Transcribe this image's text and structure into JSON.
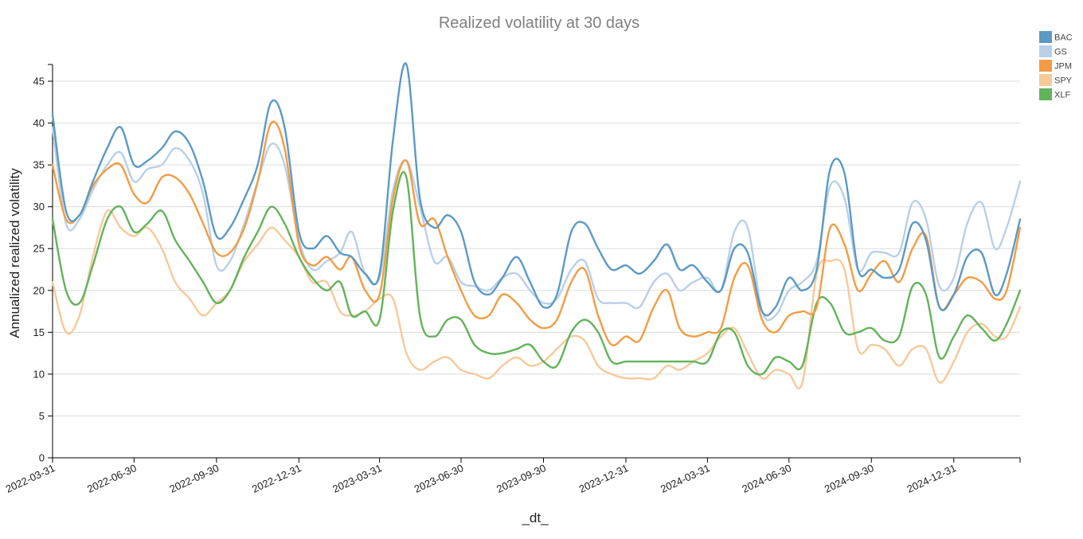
{
  "chart_data": {
    "type": "line",
    "title": "Realized volatility at 30 days",
    "xlabel": "_dt_",
    "ylabel": "Annualized realized volatility",
    "ylim": [
      0,
      47
    ],
    "yticks": [
      0,
      5,
      10,
      15,
      20,
      25,
      30,
      35,
      40,
      45
    ],
    "xlim": [
      "2022-03-31",
      "2025-03-15"
    ],
    "xticks": [
      "2022-03-31",
      "2022-06-30",
      "2022-09-30",
      "2022-12-31",
      "2023-03-31",
      "2023-06-30",
      "2023-09-30",
      "2023-12-31",
      "2024-03-31",
      "2024-06-30",
      "2024-09-30",
      "2024-12-31"
    ],
    "grid": "horizontal",
    "legend_position": "top-right",
    "x": [
      "2022-03-31",
      "2022-04-15",
      "2022-04-30",
      "2022-05-15",
      "2022-05-31",
      "2022-06-15",
      "2022-06-30",
      "2022-07-15",
      "2022-07-31",
      "2022-08-15",
      "2022-08-31",
      "2022-09-15",
      "2022-09-30",
      "2022-10-15",
      "2022-10-31",
      "2022-11-15",
      "2022-11-30",
      "2022-12-15",
      "2022-12-31",
      "2023-01-15",
      "2023-01-31",
      "2023-02-15",
      "2023-02-28",
      "2023-03-15",
      "2023-03-31",
      "2023-04-15",
      "2023-04-30",
      "2023-05-15",
      "2023-05-31",
      "2023-06-15",
      "2023-06-30",
      "2023-07-15",
      "2023-07-31",
      "2023-08-15",
      "2023-08-31",
      "2023-09-15",
      "2023-09-30",
      "2023-10-15",
      "2023-10-31",
      "2023-11-15",
      "2023-11-30",
      "2023-12-15",
      "2023-12-31",
      "2024-01-15",
      "2024-01-31",
      "2024-02-15",
      "2024-02-29",
      "2024-03-15",
      "2024-03-31",
      "2024-04-15",
      "2024-04-30",
      "2024-05-15",
      "2024-05-31",
      "2024-06-15",
      "2024-06-30",
      "2024-07-15",
      "2024-07-31",
      "2024-08-15",
      "2024-08-31",
      "2024-09-15",
      "2024-09-30",
      "2024-10-15",
      "2024-10-31",
      "2024-11-15",
      "2024-11-30",
      "2024-12-15",
      "2024-12-31",
      "2025-01-15",
      "2025-01-31",
      "2025-02-15",
      "2025-02-28",
      "2025-03-15"
    ],
    "series": [
      {
        "name": "BAC",
        "color": "#5b9ac4",
        "values": [
          41.0,
          29.5,
          29.0,
          33.0,
          37.0,
          39.5,
          35.0,
          35.5,
          37.0,
          39.0,
          37.5,
          33.0,
          26.5,
          27.5,
          31.0,
          35.0,
          42.5,
          39.5,
          27.0,
          25.0,
          26.5,
          24.5,
          24.0,
          22.0,
          22.0,
          38.0,
          47.0,
          31.0,
          27.5,
          29.0,
          27.0,
          21.0,
          19.5,
          21.5,
          24.0,
          21.0,
          18.0,
          19.5,
          27.0,
          28.0,
          25.0,
          22.5,
          23.0,
          22.0,
          23.5,
          25.5,
          22.5,
          23.0,
          21.0,
          20.0,
          25.0,
          24.5,
          17.5,
          18.0,
          21.5,
          20.0,
          22.5,
          34.5,
          34.0,
          22.5,
          22.5,
          21.5,
          22.5,
          28.0,
          26.0,
          18.0,
          19.5,
          24.0,
          24.5,
          19.5,
          22.0,
          28.5
        ]
      },
      {
        "name": "GS",
        "color": "#b9d0e8",
        "values": [
          39.5,
          28.0,
          28.5,
          32.0,
          35.0,
          36.5,
          33.0,
          34.5,
          35.0,
          37.0,
          35.5,
          31.5,
          23.0,
          23.5,
          28.0,
          33.0,
          37.5,
          35.0,
          26.0,
          22.5,
          23.5,
          24.5,
          27.0,
          22.0,
          21.5,
          32.0,
          35.5,
          30.0,
          23.5,
          24.0,
          21.0,
          20.5,
          20.0,
          21.5,
          22.0,
          20.0,
          18.5,
          19.0,
          22.5,
          23.5,
          19.0,
          18.5,
          18.5,
          18.0,
          21.0,
          22.0,
          20.0,
          21.0,
          21.5,
          20.0,
          27.0,
          27.5,
          17.5,
          17.0,
          20.0,
          21.0,
          23.5,
          32.5,
          31.0,
          22.5,
          24.5,
          24.5,
          24.5,
          30.5,
          28.5,
          20.5,
          21.5,
          28.0,
          30.5,
          25.0,
          27.5,
          33.0
        ]
      },
      {
        "name": "JPM",
        "color": "#f39c44",
        "values": [
          35.0,
          28.5,
          29.0,
          32.5,
          34.5,
          35.0,
          31.5,
          30.5,
          33.5,
          33.5,
          31.5,
          28.0,
          24.5,
          24.5,
          27.5,
          33.0,
          40.0,
          37.0,
          25.5,
          23.0,
          24.0,
          22.5,
          24.0,
          20.0,
          19.5,
          31.0,
          35.5,
          28.0,
          28.5,
          24.0,
          20.0,
          17.0,
          17.0,
          19.5,
          18.5,
          16.5,
          15.5,
          16.5,
          21.0,
          22.5,
          17.0,
          13.5,
          14.5,
          14.0,
          18.0,
          20.0,
          15.5,
          14.5,
          15.0,
          15.5,
          21.5,
          23.0,
          16.5,
          15.0,
          17.0,
          17.5,
          18.0,
          27.5,
          25.5,
          20.0,
          22.0,
          23.5,
          21.0,
          25.0,
          26.5,
          18.0,
          19.5,
          21.5,
          21.0,
          19.0,
          20.0,
          27.5
        ]
      },
      {
        "name": "SPY",
        "color": "#f7c99a",
        "values": [
          21.0,
          15.0,
          17.0,
          24.0,
          29.5,
          27.5,
          26.5,
          27.5,
          25.0,
          21.0,
          19.0,
          17.0,
          18.5,
          20.0,
          23.5,
          25.5,
          27.5,
          26.0,
          24.0,
          21.0,
          21.0,
          17.5,
          17.0,
          17.5,
          19.0,
          19.0,
          12.5,
          10.5,
          11.5,
          12.0,
          10.5,
          10.0,
          9.5,
          11.0,
          12.0,
          11.0,
          11.5,
          13.0,
          14.5,
          14.0,
          11.0,
          10.0,
          9.5,
          9.5,
          9.5,
          11.0,
          10.5,
          11.5,
          12.5,
          14.5,
          15.5,
          12.5,
          9.5,
          10.5,
          10.0,
          9.0,
          22.0,
          23.5,
          22.5,
          13.0,
          13.5,
          13.0,
          11.0,
          13.0,
          13.0,
          9.0,
          11.5,
          15.0,
          16.0,
          14.5,
          14.5,
          18.0
        ]
      },
      {
        "name": "XLF",
        "color": "#62b35a",
        "values": [
          28.5,
          20.0,
          18.5,
          23.0,
          28.5,
          30.0,
          27.0,
          28.0,
          29.5,
          26.0,
          23.5,
          21.0,
          18.5,
          20.0,
          24.0,
          27.0,
          30.0,
          28.0,
          24.0,
          21.5,
          20.0,
          21.0,
          17.0,
          17.5,
          16.5,
          29.5,
          33.5,
          17.0,
          14.5,
          16.5,
          16.5,
          13.5,
          12.5,
          12.5,
          13.0,
          13.5,
          11.5,
          11.0,
          15.0,
          16.5,
          15.0,
          11.5,
          11.5,
          11.5,
          11.5,
          11.5,
          11.5,
          11.5,
          11.5,
          15.0,
          15.0,
          11.0,
          10.0,
          12.0,
          11.5,
          11.0,
          18.5,
          18.5,
          15.0,
          15.0,
          15.5,
          14.0,
          14.5,
          20.5,
          19.5,
          12.0,
          14.5,
          17.0,
          15.5,
          14.0,
          16.0,
          20.0
        ]
      }
    ]
  }
}
